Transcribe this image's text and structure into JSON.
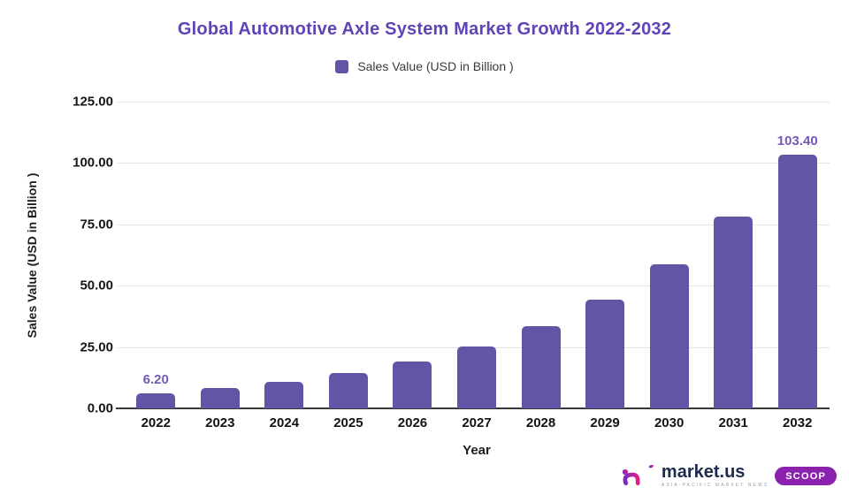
{
  "title": "Global Automotive Axle System Market Growth 2022-2032",
  "legend": {
    "label": "Sales Value (USD in Billion )",
    "swatch_color": "#6454a6"
  },
  "chart_data": {
    "type": "bar",
    "title": "Global Automotive Axle System Market Growth 2022-2032",
    "categories": [
      "2022",
      "2023",
      "2024",
      "2025",
      "2026",
      "2027",
      "2028",
      "2029",
      "2030",
      "2031",
      "2032"
    ],
    "values": [
      6.2,
      8.21,
      10.88,
      14.42,
      19.1,
      25.31,
      33.54,
      44.44,
      58.88,
      78.02,
      103.4
    ],
    "point_labels": [
      "6.20",
      "",
      "",
      "",
      "",
      "",
      "",
      "",
      "",
      "",
      "103.40"
    ],
    "series_name": "Sales Value (USD in Billion )",
    "xlabel": "Year",
    "ylabel": "Sales Value (USD in Billion )",
    "ylim": [
      0,
      125
    ],
    "ytick_interval": 25,
    "ytick_labels": [
      "0.00",
      "25.00",
      "50.00",
      "75.00",
      "100.00",
      "125.00"
    ],
    "grid": true,
    "legend_position": "top",
    "bar_color": "#6454a6",
    "value_label_color": "#7458b5"
  },
  "branding": {
    "logo_text": "market.us",
    "badge_label": "SCOOP",
    "tagline": "ASIA-PACIFIC MARKET NEWS"
  },
  "colors": {
    "title": "#6143b8",
    "bar": "#6454a6",
    "value_label": "#7458b5",
    "gridline": "#e3e3e3",
    "axis_line": "#383838",
    "tick_text": "#161616",
    "legend_text": "#3a3a3a",
    "logo_navy": "#1d2b4f",
    "badge_purple": "#8b22ad"
  }
}
